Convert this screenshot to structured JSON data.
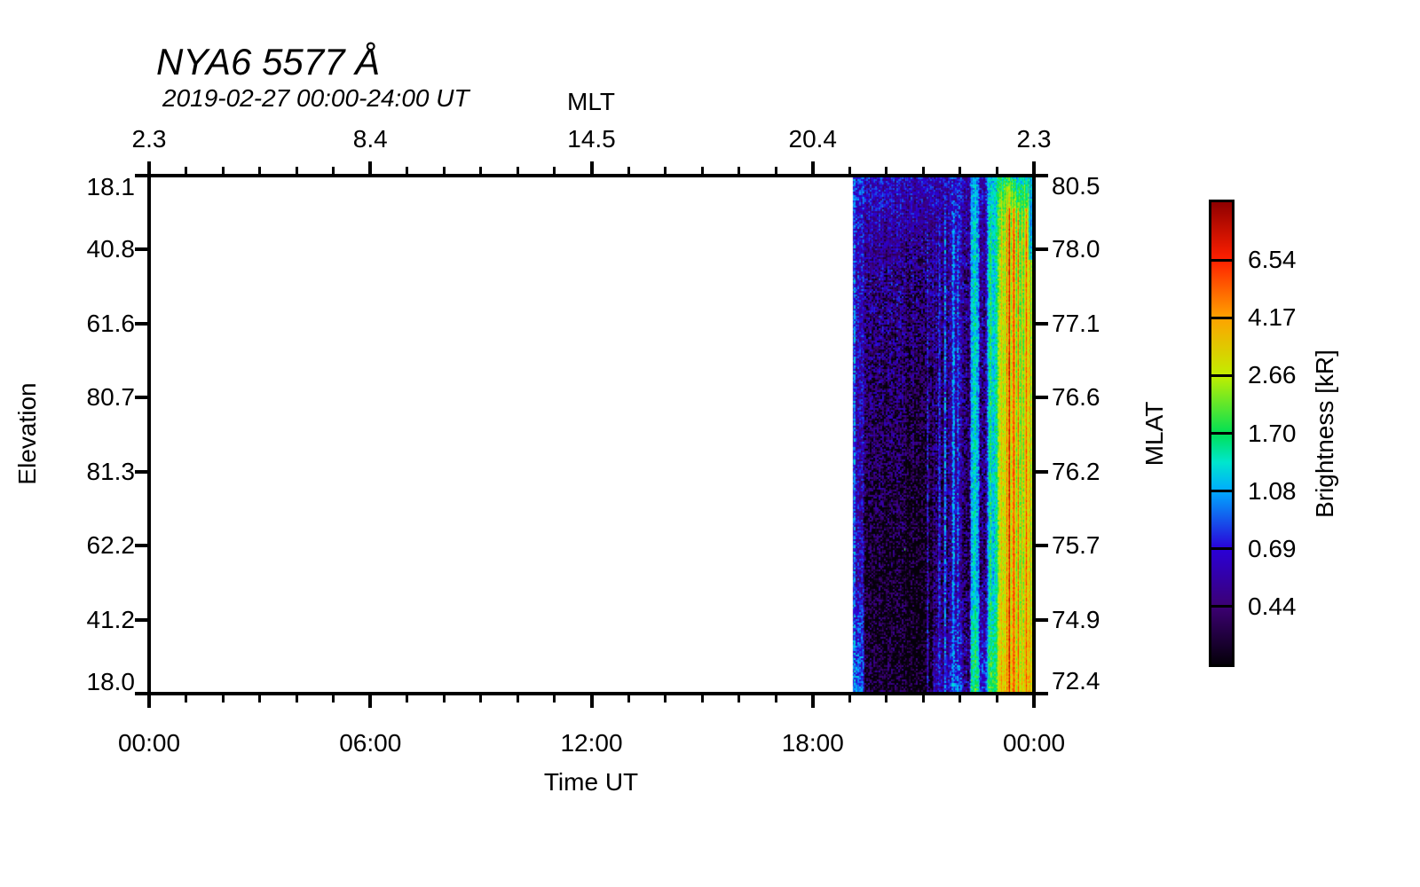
{
  "title": "NYA6 5577 Å",
  "subtitle": "2019-02-27 00:00-24:00 UT",
  "axes": {
    "top": {
      "label": "MLT",
      "ticks": [
        "2.3",
        "8.4",
        "14.5",
        "20.4",
        "2.3"
      ]
    },
    "bottom": {
      "label": "Time UT",
      "ticks": [
        "00:00",
        "06:00",
        "12:00",
        "18:00",
        "00:00"
      ]
    },
    "left": {
      "label": "Elevation",
      "ticks": [
        "18.1",
        "40.8",
        "61.6",
        "80.7",
        "81.3",
        "62.2",
        "41.2",
        "18.0"
      ]
    },
    "right": {
      "label": "MLAT",
      "ticks": [
        "80.5",
        "78.0",
        "77.1",
        "76.6",
        "76.2",
        "75.7",
        "74.9",
        "72.4"
      ]
    }
  },
  "colorbar": {
    "label": "Brightness [kR]",
    "tick_labels": [
      "6.54",
      "4.17",
      "2.66",
      "1.70",
      "1.08",
      "0.69",
      "0.44"
    ],
    "value_min": 0.281,
    "value_max": 10.23,
    "stops": [
      [
        0,
        "#05000a"
      ],
      [
        0.125,
        "#3c0073"
      ],
      [
        0.25,
        "#2a00d8"
      ],
      [
        0.375,
        "#00aaff"
      ],
      [
        0.4375,
        "#00e6cd"
      ],
      [
        0.5,
        "#00e055"
      ],
      [
        0.625,
        "#c2ee00"
      ],
      [
        0.75,
        "#ffa200"
      ],
      [
        0.875,
        "#ff2000"
      ],
      [
        1,
        "#8f0000"
      ]
    ]
  },
  "chart_data": {
    "type": "heatmap",
    "title": "NYA6 5577 Å",
    "subtitle": "2019-02-27 00:00-24:00 UT",
    "xlabel": "Time UT",
    "x_range_hours": [
      0,
      24
    ],
    "x_tick_labels_ut": [
      "00:00",
      "06:00",
      "12:00",
      "18:00",
      "00:00"
    ],
    "top_axis_label": "MLT",
    "top_axis_mlt_values": [
      2.3,
      8.4,
      14.5,
      20.4,
      2.3
    ],
    "left_axis_label": "Elevation",
    "left_axis_elevation_ticks": [
      18.1,
      40.8,
      61.6,
      80.7,
      81.3,
      62.2,
      41.2,
      18.0
    ],
    "right_axis_label": "MLAT",
    "right_axis_mlat_ticks": [
      80.5,
      78.0,
      77.1,
      76.6,
      76.2,
      75.7,
      74.9,
      72.4
    ],
    "colorbar_label": "Brightness [kR]",
    "colorbar_ticks_kR": [
      6.54,
      4.17,
      2.66,
      1.7,
      1.08,
      0.69,
      0.44
    ],
    "color_scale": "log",
    "no_data_ut_hours": [
      0,
      19.13
    ],
    "data_ut_hours": [
      19.13,
      24
    ],
    "profile_fy_anchors": [
      0,
      0.12,
      0.45,
      0.78,
      1
    ],
    "segments": [
      {
        "t0": 19.13,
        "t1": 19.42,
        "p": [
          0.8,
          0.68,
          0.6,
          0.62,
          0.95
        ]
      },
      {
        "t0": 19.42,
        "t1": 20.55,
        "p": [
          0.66,
          0.52,
          0.4,
          0.3,
          0.32
        ]
      },
      {
        "t0": 20.55,
        "t1": 21.3,
        "p": [
          0.62,
          0.48,
          0.34,
          0.26,
          0.27
        ]
      },
      {
        "t0": 21.3,
        "t1": 21.75,
        "p": [
          0.62,
          0.52,
          0.44,
          0.4,
          0.6
        ]
      },
      {
        "t0": 21.75,
        "t1": 22.1,
        "p": [
          0.68,
          0.62,
          0.56,
          0.52,
          0.8
        ]
      },
      {
        "t0": 22.1,
        "t1": 22.32,
        "p": [
          0.58,
          0.48,
          0.42,
          0.38,
          0.5
        ]
      },
      {
        "t0": 22.32,
        "t1": 22.55,
        "p": [
          1.05,
          1.15,
          1.2,
          1.1,
          1.7
        ]
      },
      {
        "t0": 22.55,
        "t1": 22.78,
        "p": [
          0.62,
          0.52,
          0.46,
          0.44,
          0.75
        ]
      },
      {
        "t0": 22.78,
        "t1": 23.08,
        "p": [
          1.25,
          1.3,
          1.3,
          1.2,
          1.9
        ]
      },
      {
        "t0": 23.08,
        "t1": 24.0,
        "p": [
          1.9,
          2.4,
          2.8,
          2.8,
          3.4
        ]
      }
    ],
    "streaks": [
      {
        "t": 19.16,
        "w": 0.05,
        "b": 0.95
      },
      {
        "t": 21.16,
        "w": 0.04,
        "b": 0.62
      },
      {
        "t": 21.47,
        "w": 0.05,
        "b": 0.78
      },
      {
        "t": 21.63,
        "w": 0.05,
        "b": 0.88
      },
      {
        "t": 21.86,
        "w": 0.05,
        "b": 1.05
      },
      {
        "t": 21.98,
        "w": 0.04,
        "b": 0.95
      },
      {
        "t": 22.42,
        "w": 0.06,
        "b": 1.45
      },
      {
        "t": 22.86,
        "w": 0.05,
        "b": 1.75
      },
      {
        "t": 23.01,
        "w": 0.04,
        "b": 1.65
      },
      {
        "t": 23.18,
        "w": 0.04,
        "b": 3.4
      },
      {
        "t": 23.3,
        "w": 0.035,
        "b": 4.2
      },
      {
        "t": 23.38,
        "w": 0.03,
        "b": 6.2
      },
      {
        "t": 23.5,
        "w": 0.035,
        "b": 7.2
      },
      {
        "t": 23.62,
        "w": 0.03,
        "b": 6.6
      },
      {
        "t": 23.72,
        "w": 0.03,
        "b": 4.8
      },
      {
        "t": 23.84,
        "w": 0.035,
        "b": 6.9
      },
      {
        "t": 23.93,
        "w": 0.025,
        "b": 4.0
      }
    ],
    "top_cap": {
      "fy": 0.06,
      "b0": 1.5,
      "b1": 2.6
    },
    "right_edge_cap": {
      "t": 23.9,
      "fy": 0.16,
      "b": 1.2
    },
    "fleck": {
      "t": 20.52,
      "fy": 0.72,
      "b": 1.9
    }
  }
}
